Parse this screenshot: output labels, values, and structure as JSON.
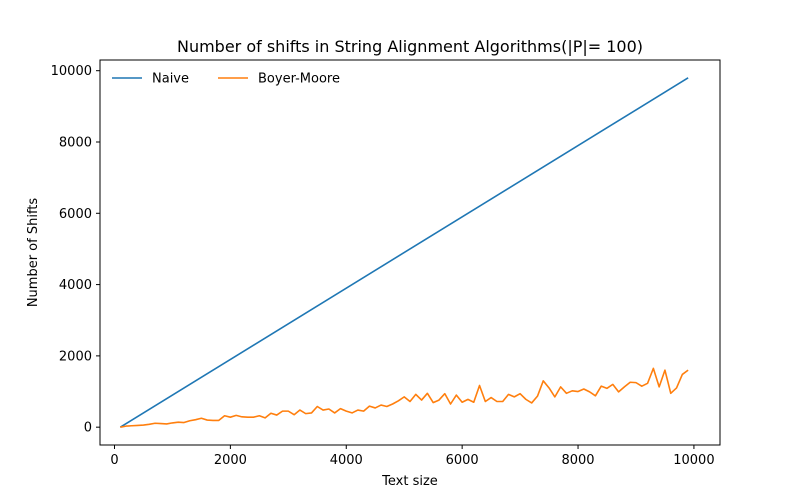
{
  "chart_data": {
    "type": "line",
    "title": "Number of shifts in String Alignment Algorithms(|P|= 100)",
    "xlabel": "Text size",
    "ylabel": "Number of Shifts",
    "xlim": [
      -250,
      10450
    ],
    "ylim": [
      -500,
      10300
    ],
    "xticks": [
      0,
      2000,
      4000,
      6000,
      8000,
      10000
    ],
    "yticks": [
      0,
      2000,
      4000,
      6000,
      8000,
      10000
    ],
    "legend_position": "top-left",
    "grid": false,
    "series": [
      {
        "name": "Naive",
        "color": "#1f77b4",
        "x": [
          100,
          9900
        ],
        "y": [
          0,
          9800
        ]
      },
      {
        "name": "Boyer-Moore",
        "color": "#ff7f0e",
        "x": [
          100,
          200,
          300,
          400,
          500,
          600,
          700,
          800,
          900,
          1000,
          1100,
          1200,
          1300,
          1400,
          1500,
          1600,
          1700,
          1800,
          1900,
          2000,
          2100,
          2200,
          2300,
          2400,
          2500,
          2600,
          2700,
          2800,
          2900,
          3000,
          3100,
          3200,
          3300,
          3400,
          3500,
          3600,
          3700,
          3800,
          3900,
          4000,
          4100,
          4200,
          4300,
          4400,
          4500,
          4600,
          4700,
          4800,
          4900,
          5000,
          5100,
          5200,
          5300,
          5400,
          5500,
          5600,
          5700,
          5800,
          5900,
          6000,
          6100,
          6200,
          6300,
          6400,
          6500,
          6600,
          6700,
          6800,
          6900,
          7000,
          7100,
          7200,
          7300,
          7400,
          7500,
          7600,
          7700,
          7800,
          7900,
          8000,
          8100,
          8200,
          8300,
          8400,
          8500,
          8600,
          8700,
          8800,
          8900,
          9000,
          9100,
          9200,
          9300,
          9400,
          9500,
          9600,
          9700,
          9800,
          9900
        ],
        "y": [
          0,
          30,
          40,
          50,
          60,
          80,
          110,
          100,
          90,
          120,
          140,
          130,
          180,
          210,
          250,
          200,
          190,
          190,
          320,
          280,
          330,
          290,
          280,
          280,
          320,
          260,
          390,
          340,
          450,
          450,
          350,
          480,
          380,
          400,
          580,
          480,
          510,
          400,
          520,
          450,
          400,
          480,
          450,
          590,
          540,
          620,
          580,
          650,
          740,
          850,
          720,
          920,
          760,
          950,
          690,
          760,
          940,
          650,
          900,
          700,
          780,
          700,
          1170,
          720,
          830,
          720,
          720,
          920,
          850,
          940,
          780,
          680,
          870,
          1300,
          1100,
          850,
          1130,
          950,
          1020,
          1000,
          1070,
          990,
          880,
          1150,
          1090,
          1200,
          990,
          1130,
          1260,
          1250,
          1150,
          1230,
          1650,
          1130,
          1600,
          950,
          1100,
          1480,
          1600
        ]
      }
    ]
  }
}
